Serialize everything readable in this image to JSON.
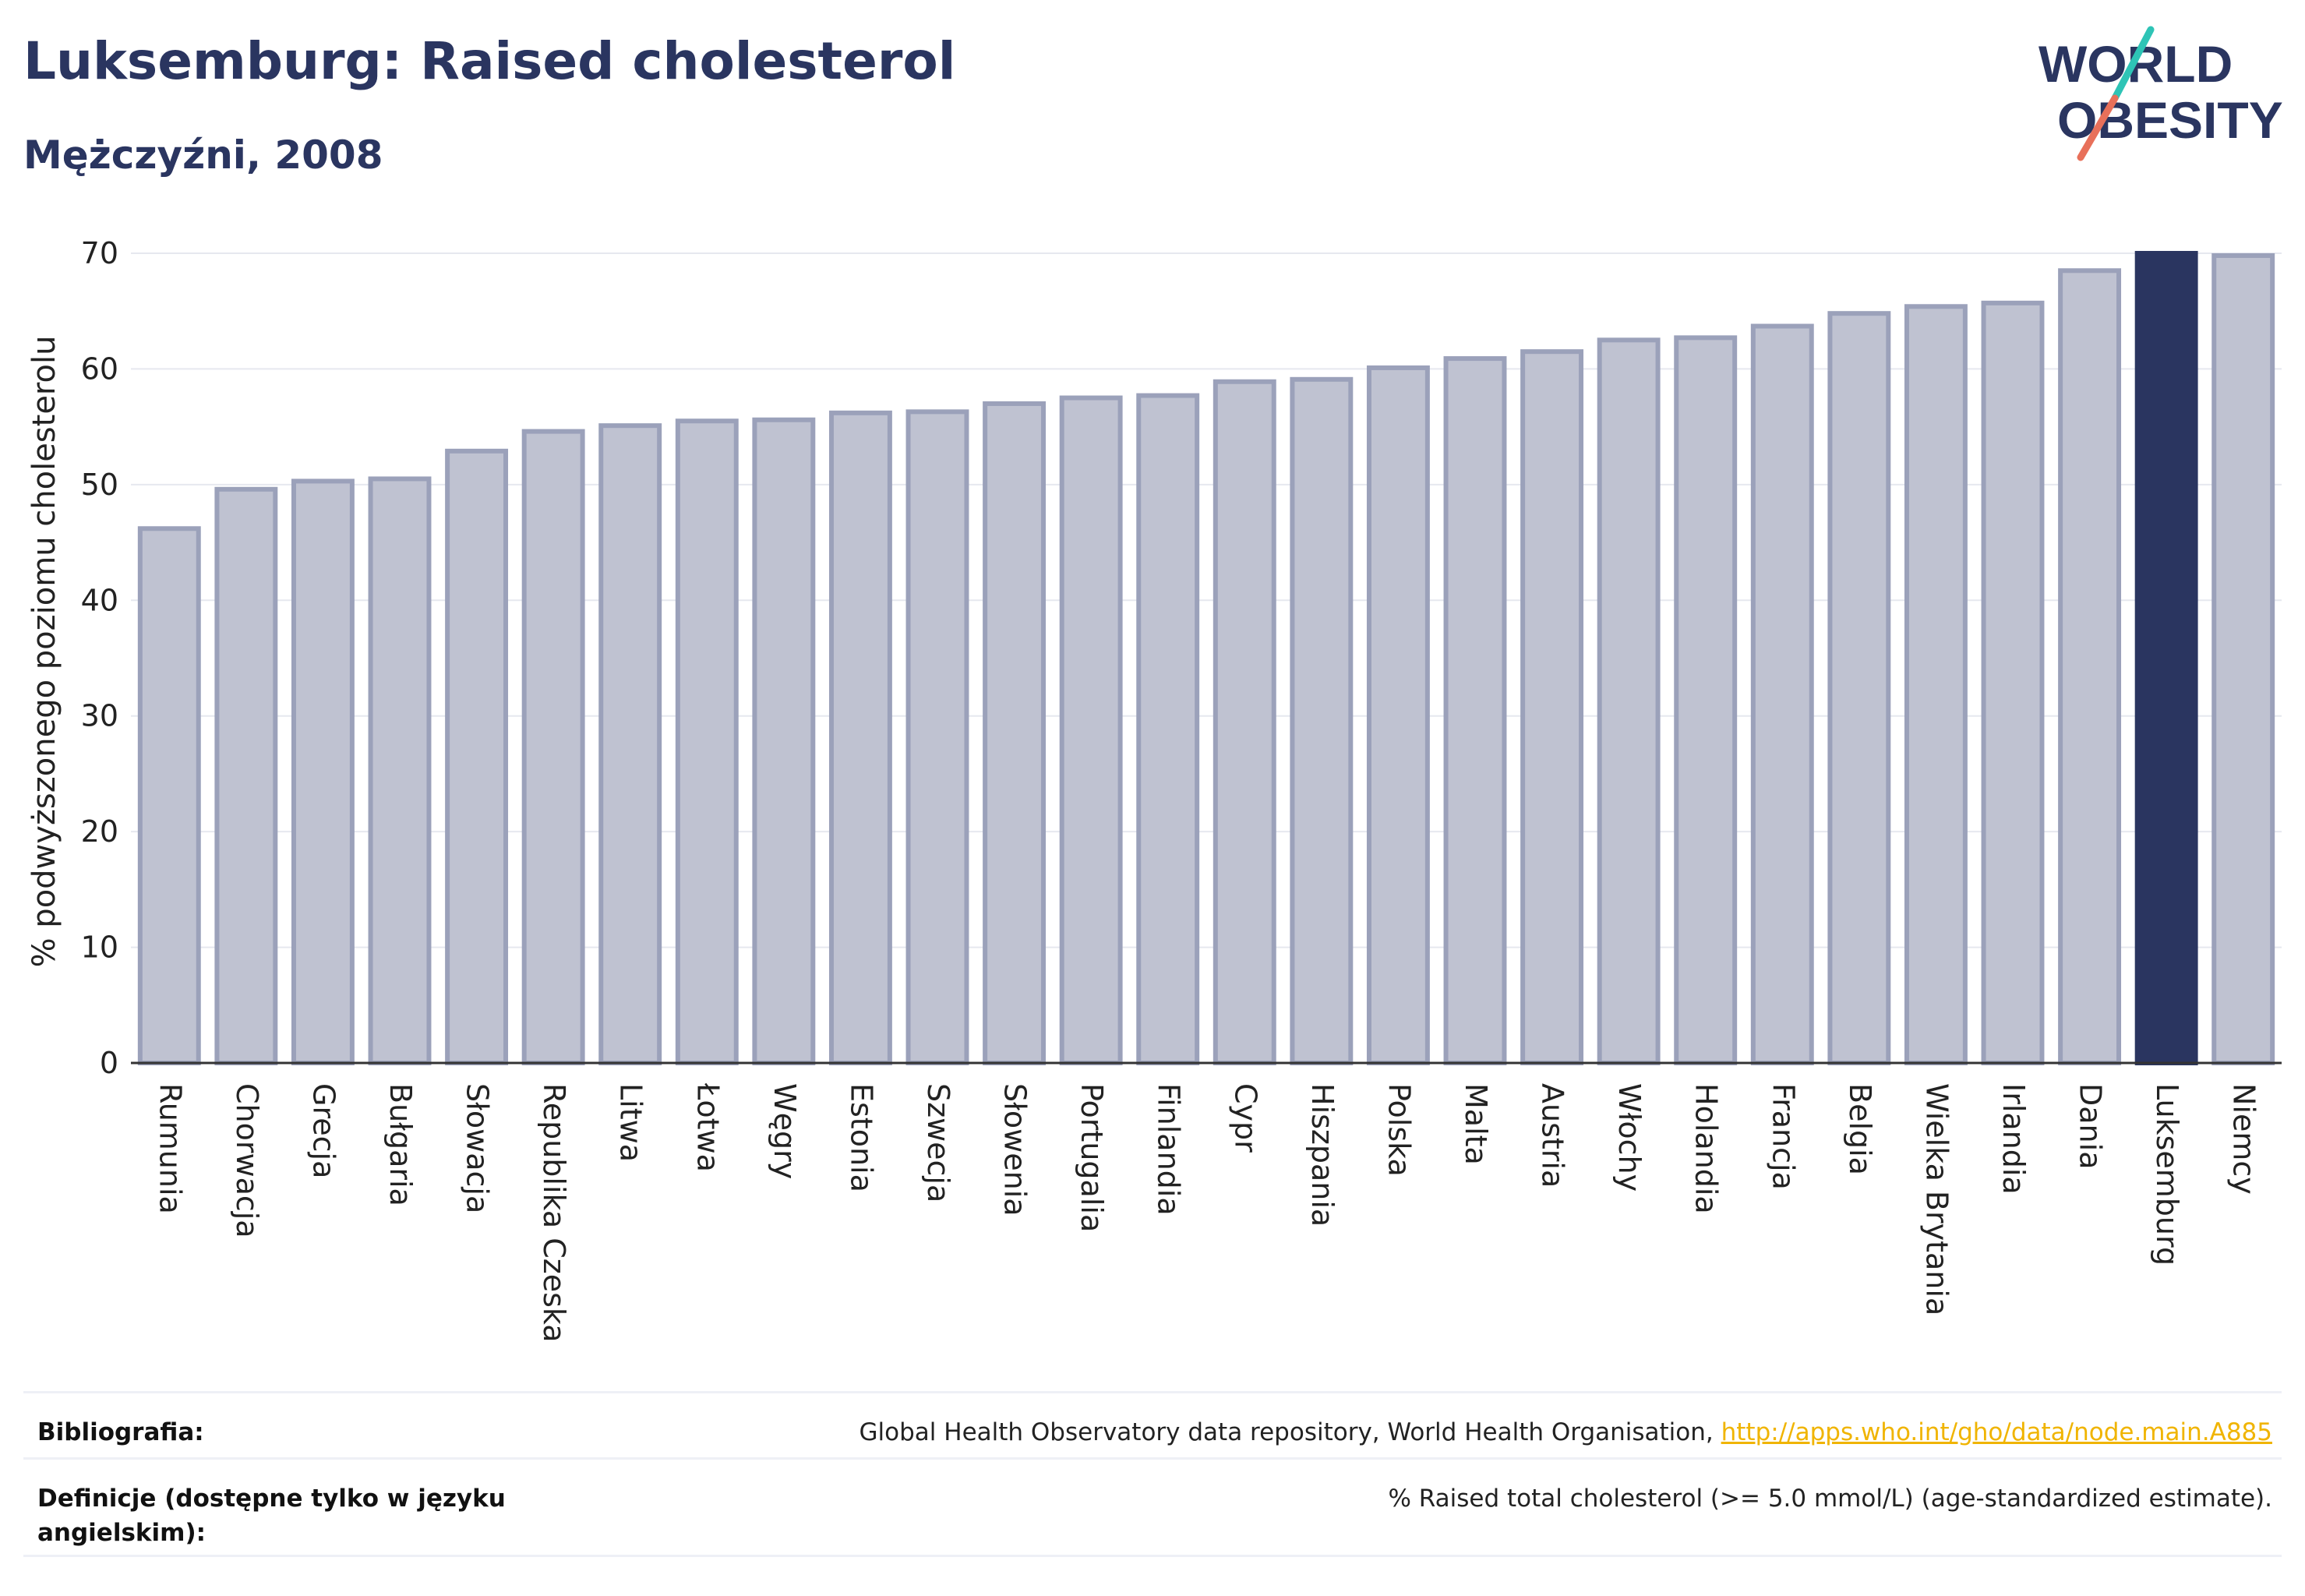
{
  "title": "Luksemburg: Raised cholesterol",
  "subtitle": "Mężczyźni, 2008",
  "logo": {
    "line1": "WORLD",
    "line2": "OBESITY",
    "colors": {
      "text": "#2a3560",
      "slash_top": "#2ec4b6",
      "slash_bottom": "#e8705a"
    }
  },
  "colors": {
    "bar": "#bfc2d1",
    "bar_border": "#9ba1ba",
    "highlight": "#2a3560",
    "grid": "#e6e8ef",
    "axis": "#333333"
  },
  "chart_data": {
    "type": "bar",
    "title": "Luksemburg: Raised cholesterol",
    "subtitle": "Mężczyźni, 2008",
    "ylabel": "% podwyższonego poziomu cholesterolu",
    "xlabel": "",
    "ylim": [
      0,
      70
    ],
    "yticks": [
      0,
      10,
      20,
      30,
      40,
      50,
      60,
      70
    ],
    "grid": true,
    "highlight": "Luksemburg",
    "categories": [
      "Rumunia",
      "Chorwacja",
      "Grecja",
      "Bułgaria",
      "Słowacja",
      "Republika Czeska",
      "Litwa",
      "Łotwa",
      "Węgry",
      "Estonia",
      "Szwecja",
      "Słowenia",
      "Portugalia",
      "Finlandia",
      "Cypr",
      "Hiszpania",
      "Polska",
      "Malta",
      "Austria",
      "Włochy",
      "Holandia",
      "Francja",
      "Belgia",
      "Wielka Brytania",
      "Irlandia",
      "Dania",
      "Luksemburg",
      "Niemcy"
    ],
    "values": [
      46.2,
      49.6,
      50.3,
      50.5,
      52.9,
      54.6,
      55.1,
      55.5,
      55.6,
      56.2,
      56.3,
      57.0,
      57.5,
      57.7,
      58.9,
      59.1,
      60.1,
      60.9,
      61.5,
      62.5,
      62.7,
      63.7,
      64.8,
      65.4,
      65.7,
      68.5,
      70.0,
      69.8
    ]
  },
  "references": {
    "bibliography_label": "Bibliografia:",
    "bibliography_text": "Global Health Observatory data repository, World Health Organisation, ",
    "bibliography_link": "http://apps.who.int/gho/data/node.main.A885",
    "definitions_label": "Definicje (dostępne tylko w języku angielskim):",
    "definitions_text": "% Raised total cholesterol (>= 5.0 mmol/L) (age-standardized estimate)."
  }
}
